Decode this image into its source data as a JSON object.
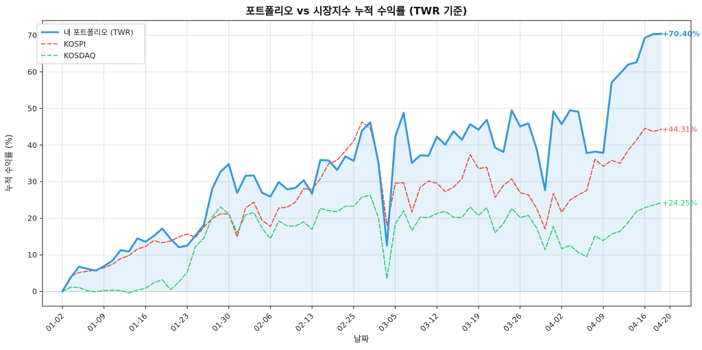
{
  "chart_data": {
    "type": "line",
    "title": "포트폴리오 vs 시장지수 누적 수익률 (TWR 기준)",
    "xlabel": "날짜",
    "ylabel": "누적 수익률 (%)",
    "ylim": [
      -4,
      74
    ],
    "yticks": [
      0,
      10,
      20,
      30,
      40,
      50,
      60,
      70
    ],
    "x_tick_labels": [
      "01-02",
      "01-09",
      "01-16",
      "01-23",
      "01-30",
      "02-06",
      "02-13",
      "02-25",
      "03-05",
      "03-12",
      "03-19",
      "03-26",
      "04-02",
      "04-09",
      "04-16",
      "04-20"
    ],
    "x_tick_indices": [
      0,
      5,
      10,
      15,
      20,
      25,
      30,
      35,
      40,
      45,
      50,
      55,
      60,
      65,
      70,
      73
    ],
    "grid": true,
    "legend_position": "top-left",
    "series": [
      {
        "name": "내 포트폴리오 (TWR)",
        "color": "#3498db",
        "style": "solid",
        "fill": true,
        "end_label": "+70.40%",
        "values": [
          0,
          3.8,
          6.8,
          6.2,
          5.7,
          6.9,
          8.4,
          11.3,
          10.9,
          14.5,
          13.6,
          15.2,
          17.2,
          14.4,
          12.1,
          12.5,
          15.3,
          18.2,
          28.0,
          32.7,
          34.8,
          26.9,
          31.6,
          31.7,
          27.0,
          25.9,
          29.9,
          27.9,
          28.3,
          30.4,
          26.7,
          35.9,
          35.8,
          33.2,
          36.9,
          35.7,
          43.9,
          46.2,
          34.9,
          12.6,
          42.3,
          48.8,
          35.1,
          37.2,
          37.1,
          42.3,
          40.1,
          43.8,
          41.4,
          45.7,
          44.2,
          46.9,
          39.3,
          38.1,
          49.5,
          45.1,
          45.9,
          38.9,
          27.7,
          49.2,
          45.7,
          49.5,
          49.1,
          37.8,
          38.2,
          37.9,
          57.1,
          59.5,
          62.0,
          62.6,
          69.3,
          70.3,
          70.4
        ]
      },
      {
        "name": "KOSPI",
        "color": "#e74c3c",
        "style": "dashed",
        "fill": false,
        "end_label": "+44.31%",
        "values": [
          0,
          4.2,
          5.2,
          5.5,
          5.9,
          6.5,
          7.4,
          9.0,
          9.8,
          11.6,
          12.3,
          13.9,
          13.3,
          13.8,
          14.9,
          15.7,
          14.8,
          17.6,
          19.9,
          21.2,
          21.2,
          14.9,
          22.8,
          24.4,
          19.4,
          17.8,
          22.8,
          23.0,
          24.4,
          28.1,
          27.9,
          30.8,
          34.9,
          35.8,
          38.4,
          41.1,
          46.3,
          44.6,
          35.5,
          18.1,
          29.6,
          29.7,
          21.7,
          28.5,
          30.2,
          29.6,
          27.3,
          28.5,
          30.8,
          37.4,
          33.6,
          33.9,
          25.7,
          29.0,
          30.8,
          27.0,
          26.4,
          22.7,
          17.1,
          26.8,
          21.6,
          25.0,
          26.4,
          27.6,
          36.1,
          34.2,
          35.8,
          35.0,
          38.6,
          41.4,
          44.6,
          43.7,
          44.31
        ]
      },
      {
        "name": "KOSDAQ",
        "color": "#2ecc71",
        "style": "dashed",
        "fill": false,
        "end_label": "+24.25%",
        "values": [
          0,
          1.2,
          1.1,
          0.2,
          -0.1,
          0.3,
          0.4,
          0.3,
          -0.4,
          0.4,
          0.9,
          2.4,
          3.2,
          0.5,
          2.6,
          5.3,
          12.3,
          14.6,
          20.4,
          23.1,
          21.2,
          16.1,
          20.9,
          21.6,
          17.3,
          14.4,
          19.3,
          17.9,
          17.9,
          19.0,
          17.0,
          22.7,
          22.1,
          21.8,
          23.3,
          23.3,
          25.8,
          26.3,
          20.0,
          3.5,
          18.4,
          22.1,
          16.6,
          20.3,
          20.2,
          21.3,
          21.9,
          20.3,
          20.2,
          23.1,
          20.8,
          22.9,
          16.1,
          18.6,
          22.7,
          20.2,
          20.8,
          17.3,
          11.4,
          17.8,
          11.7,
          12.6,
          10.7,
          9.5,
          15.2,
          13.9,
          15.7,
          16.4,
          18.9,
          21.9,
          22.9,
          23.6,
          24.25
        ]
      }
    ]
  }
}
